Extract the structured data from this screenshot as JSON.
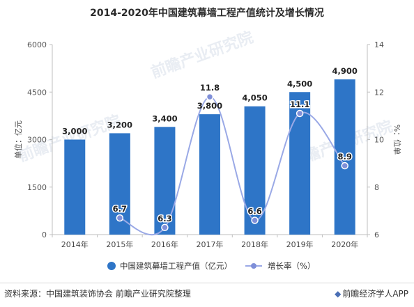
{
  "title": "2014-2020年中国建筑幕墙工程产值统计及增长情况",
  "footer": {
    "source": "资料来源：中国建筑装饰协会 前瞻产业研究院整理",
    "brand_icon": "tag-icon",
    "brand": "前瞻经济学人APP"
  },
  "watermark": "前瞻产业研究院",
  "colors": {
    "bar": "#2e75c7",
    "line": "#9aa9e6",
    "point": "#7f8fd8"
  },
  "chart_data": {
    "type": "bar",
    "categories": [
      "2014年",
      "2015年",
      "2016年",
      "2017年",
      "2018年",
      "2019年",
      "2020年"
    ],
    "series": [
      {
        "name": "中国建筑幕墙工程产值（亿元）",
        "type": "bar",
        "axis": "left",
        "values": [
          3000,
          3200,
          3400,
          3800,
          4050,
          4500,
          4900
        ],
        "labels": [
          "3,000",
          "3,200",
          "3,400",
          "3,800",
          "4,050",
          "4,500",
          "4,900"
        ]
      },
      {
        "name": "增长率（%）",
        "type": "line",
        "axis": "right",
        "values": [
          null,
          6.7,
          6.3,
          11.8,
          6.6,
          11.1,
          8.9
        ],
        "labels": [
          "",
          "6.7",
          "6.3",
          "11.8",
          "6.6",
          "11.1",
          "8.9"
        ]
      }
    ],
    "ylabel": "单位：亿元",
    "y2label": "%：位单",
    "ylim": [
      0,
      6000
    ],
    "y2lim": [
      6,
      14
    ],
    "yticks": [
      0,
      1500,
      3000,
      4500,
      6000
    ],
    "y2ticks": [
      6,
      8,
      10,
      12,
      14
    ],
    "grid": false,
    "legend": "bottom-center"
  }
}
